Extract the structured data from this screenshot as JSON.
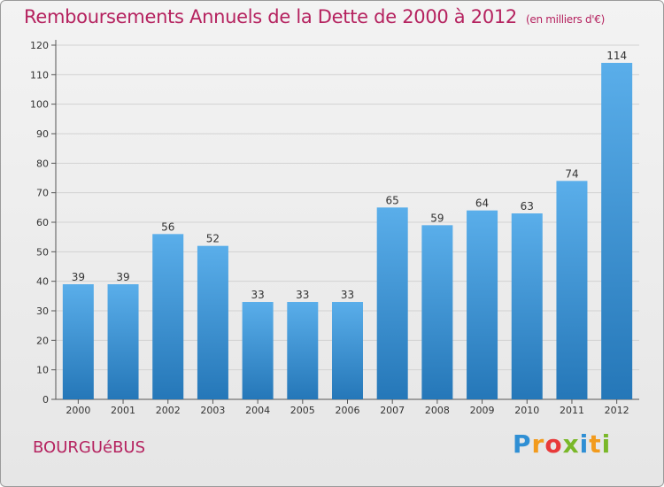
{
  "chart_data": {
    "type": "bar",
    "title": "Remboursements Annuels de la Dette de 2000 à 2012",
    "subtitle": "(en milliers d'€)",
    "categories": [
      "2000",
      "2001",
      "2002",
      "2003",
      "2004",
      "2005",
      "2006",
      "2007",
      "2008",
      "2009",
      "2010",
      "2011",
      "2012"
    ],
    "values": [
      39,
      39,
      56,
      52,
      33,
      33,
      33,
      65,
      59,
      64,
      63,
      74,
      114
    ],
    "ylim": [
      0,
      120
    ],
    "yticks": [
      0,
      10,
      20,
      30,
      40,
      50,
      60,
      70,
      80,
      90,
      100,
      110,
      120
    ],
    "grid": true,
    "bar_color_top": "#5aaeea",
    "bar_color_bottom": "#2577b8"
  },
  "place_name": "BOURGUéBUS",
  "logo": {
    "text": "Proxiti",
    "letters": [
      "P",
      "r",
      "o",
      "x",
      "i",
      "t",
      "i"
    ]
  }
}
